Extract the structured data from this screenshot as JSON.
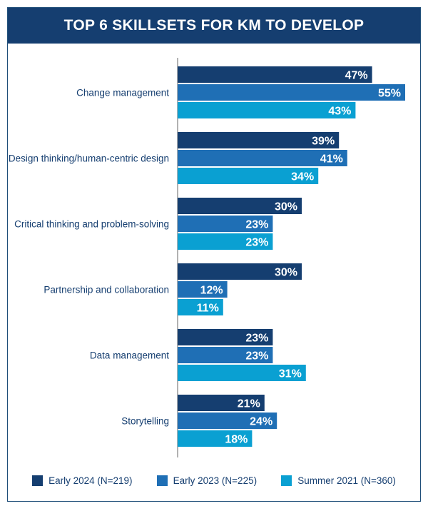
{
  "title": "TOP 6 SKILLSETS FOR KM TO DEVELOP",
  "chart_data": {
    "type": "bar",
    "orientation": "horizontal",
    "title": "TOP 6 SKILLSETS FOR KM TO DEVELOP",
    "categories": [
      "Change management",
      "Design thinking/human-centric design",
      "Critical thinking and problem-solving",
      "Partnership and collaboration",
      "Data management",
      "Storytelling"
    ],
    "series": [
      {
        "name": "Early 2024 (N=219)",
        "color": "#153e70",
        "values": [
          47,
          39,
          30,
          30,
          23,
          21
        ]
      },
      {
        "name": "Early 2023 (N=225)",
        "color": "#1f6fb5",
        "values": [
          55,
          41,
          23,
          12,
          23,
          24
        ]
      },
      {
        "name": "Summer 2021 (N=360)",
        "color": "#0aa0d2",
        "values": [
          43,
          34,
          23,
          11,
          31,
          18
        ]
      }
    ],
    "value_suffix": "%",
    "xlim": [
      0,
      55
    ],
    "grid": false,
    "legend_position": "bottom"
  }
}
